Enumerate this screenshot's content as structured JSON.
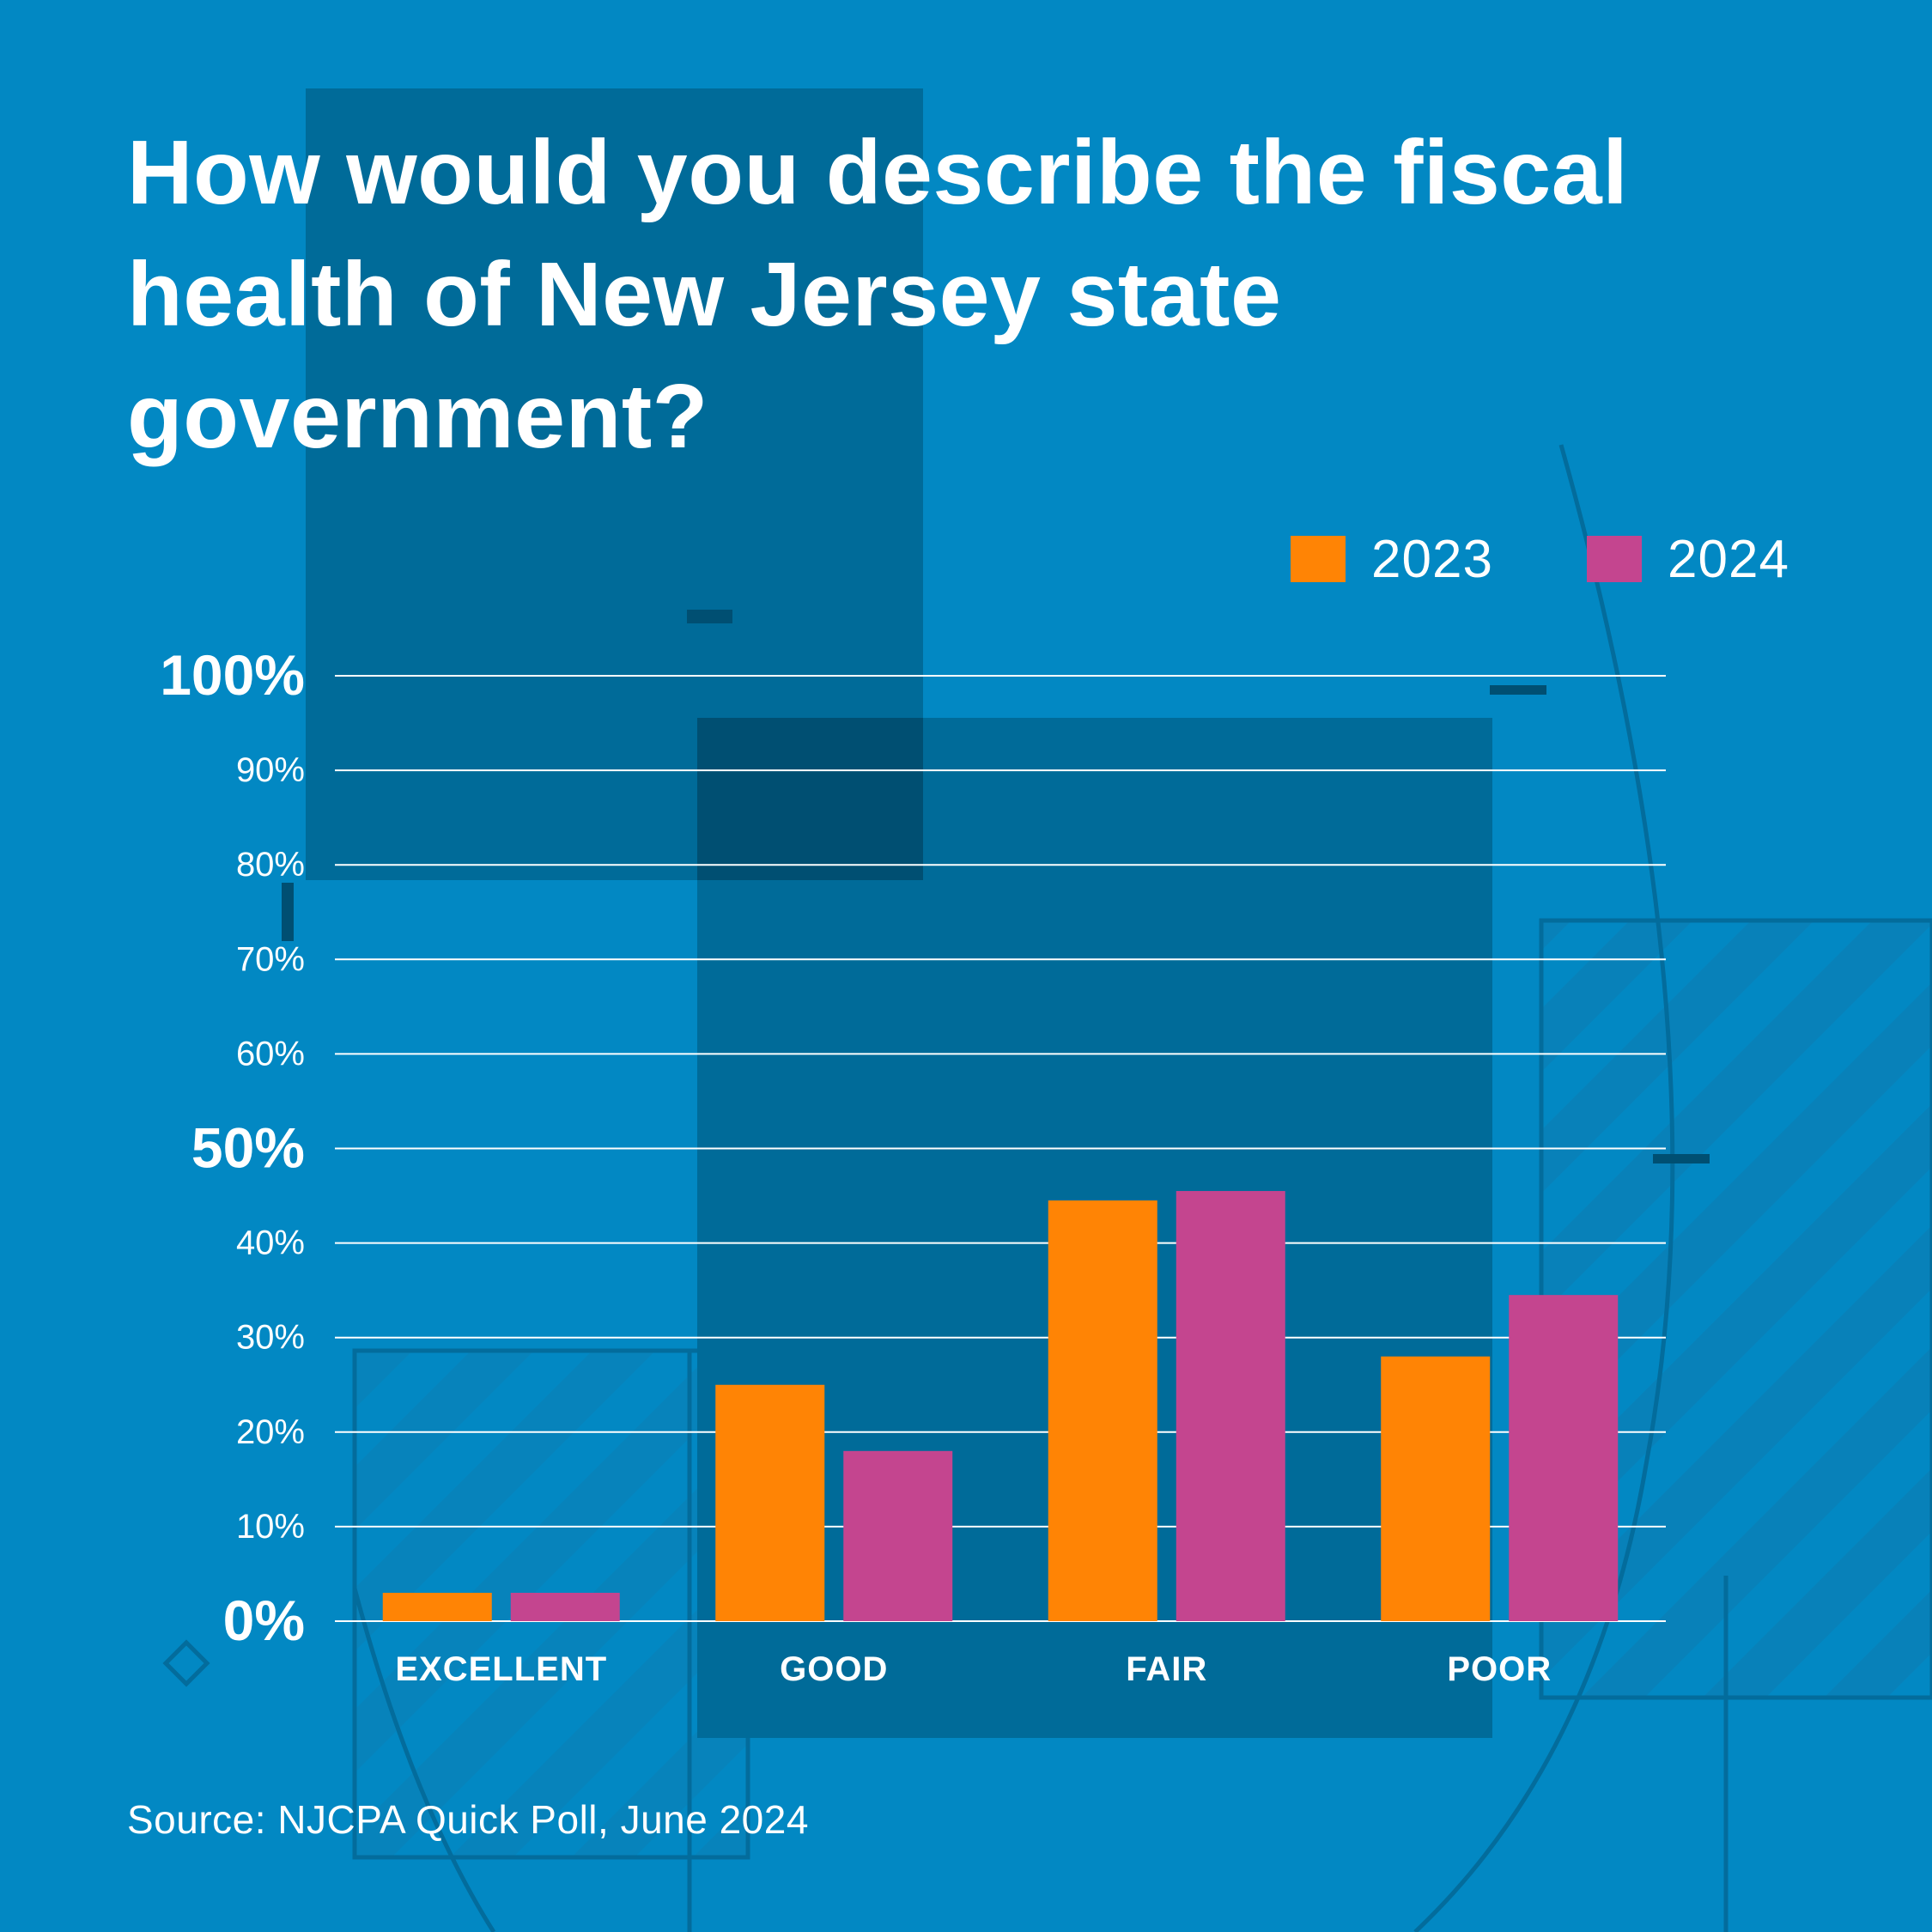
{
  "title": "How would you describe the fiscal health of New Jersey state government?",
  "source": "Source: NJCPA Quick Poll, June 2024",
  "colors": {
    "background": "#0288c3",
    "panel": "#006b99",
    "panel_dark": "#004f72",
    "series_2023": "#ff8405",
    "series_2024": "#c4458f",
    "gridline": "#ffffff",
    "text": "#ffffff"
  },
  "chart_data": {
    "type": "bar",
    "title": "How would you describe the fiscal health of New Jersey state government?",
    "categories": [
      "EXCELLENT",
      "GOOD",
      "FAIR",
      "POOR"
    ],
    "series": [
      {
        "name": "2023",
        "color": "#ff8405",
        "values": [
          3,
          25,
          44.5,
          28
        ]
      },
      {
        "name": "2024",
        "color": "#c4458f",
        "values": [
          3,
          18,
          45.5,
          34.5
        ]
      }
    ],
    "ylim": [
      0,
      100
    ],
    "yticks": [
      {
        "value": 0,
        "label": "0%",
        "major": true
      },
      {
        "value": 10,
        "label": "10%",
        "major": false
      },
      {
        "value": 20,
        "label": "20%",
        "major": false
      },
      {
        "value": 30,
        "label": "30%",
        "major": false
      },
      {
        "value": 40,
        "label": "40%",
        "major": false
      },
      {
        "value": 50,
        "label": "50%",
        "major": true
      },
      {
        "value": 60,
        "label": "60%",
        "major": false
      },
      {
        "value": 70,
        "label": "70%",
        "major": false
      },
      {
        "value": 80,
        "label": "80%",
        "major": false
      },
      {
        "value": 90,
        "label": "90%",
        "major": false
      },
      {
        "value": 100,
        "label": "100%",
        "major": true
      }
    ],
    "grid": true,
    "legend_position": "top-right",
    "xlabel": "",
    "ylabel": ""
  }
}
